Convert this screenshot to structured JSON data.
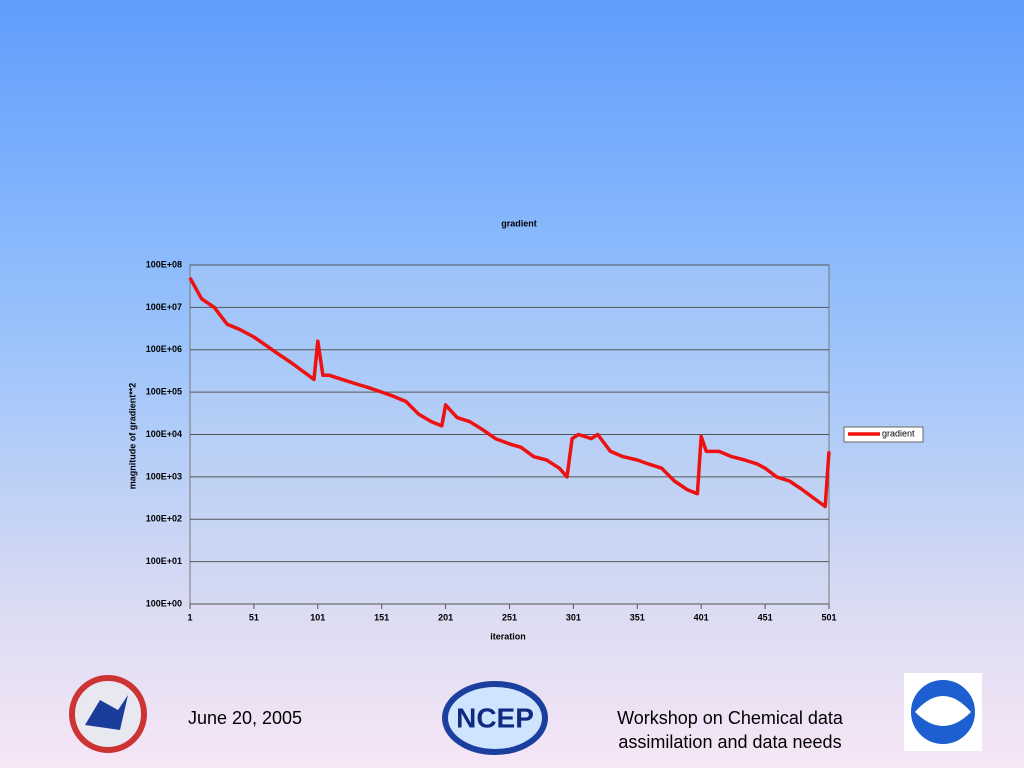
{
  "chart_data": {
    "type": "line",
    "title": "gradient",
    "x_label": "iteration",
    "y_label": "magnitude of gradient**2",
    "log_y": true,
    "grid": true,
    "legend": "right",
    "xlim": [
      1,
      501
    ],
    "xticks": [
      1,
      51,
      101,
      151,
      201,
      251,
      301,
      351,
      401,
      451,
      501
    ],
    "ylim": [
      1,
      100000000
    ],
    "yticks": [
      {
        "value": 1,
        "label": "100E+00"
      },
      {
        "value": 10,
        "label": "100E+01"
      },
      {
        "value": 100,
        "label": "100E+02"
      },
      {
        "value": 1000,
        "label": "100E+03"
      },
      {
        "value": 10000,
        "label": "100E+04"
      },
      {
        "value": 100000,
        "label": "100E+05"
      },
      {
        "value": 1000000,
        "label": "100E+06"
      },
      {
        "value": 10000000,
        "label": "100E+07"
      },
      {
        "value": 100000000,
        "label": "100E+08"
      }
    ],
    "x": [
      1,
      10,
      20,
      30,
      40,
      51,
      60,
      70,
      80,
      90,
      98,
      101,
      105,
      110,
      120,
      130,
      140,
      151,
      160,
      170,
      180,
      190,
      198,
      201,
      210,
      220,
      230,
      240,
      251,
      260,
      270,
      280,
      290,
      296,
      300,
      305,
      315,
      320,
      330,
      340,
      351,
      360,
      370,
      380,
      390,
      398,
      401,
      405,
      415,
      425,
      435,
      445,
      451,
      460,
      470,
      480,
      490,
      498,
      501
    ],
    "series": [
      {
        "name": "gradient",
        "color": "#ee1111",
        "values": [
          50000000,
          16000000,
          10000000,
          4000000,
          3000000,
          2000000,
          1300000,
          800000,
          500000,
          300000,
          200000,
          1600000,
          250000,
          250000,
          200000,
          160000,
          130000,
          100000,
          80000,
          60000,
          30000,
          20000,
          16000,
          50000,
          25000,
          20000,
          13000,
          8000,
          6000,
          5000,
          3000,
          2500,
          1600,
          1000,
          8000,
          10000,
          8000,
          10000,
          4000,
          3000,
          2500,
          2000,
          1600,
          800,
          500,
          400,
          9000,
          4000,
          4000,
          3000,
          2500,
          2000,
          1600,
          1000,
          800,
          500,
          300,
          200,
          4000
        ]
      }
    ]
  },
  "footer": {
    "date": "June 20, 2005",
    "event": "Workshop on Chemical data assimilation and data needs",
    "logo_text": "NCEP"
  }
}
